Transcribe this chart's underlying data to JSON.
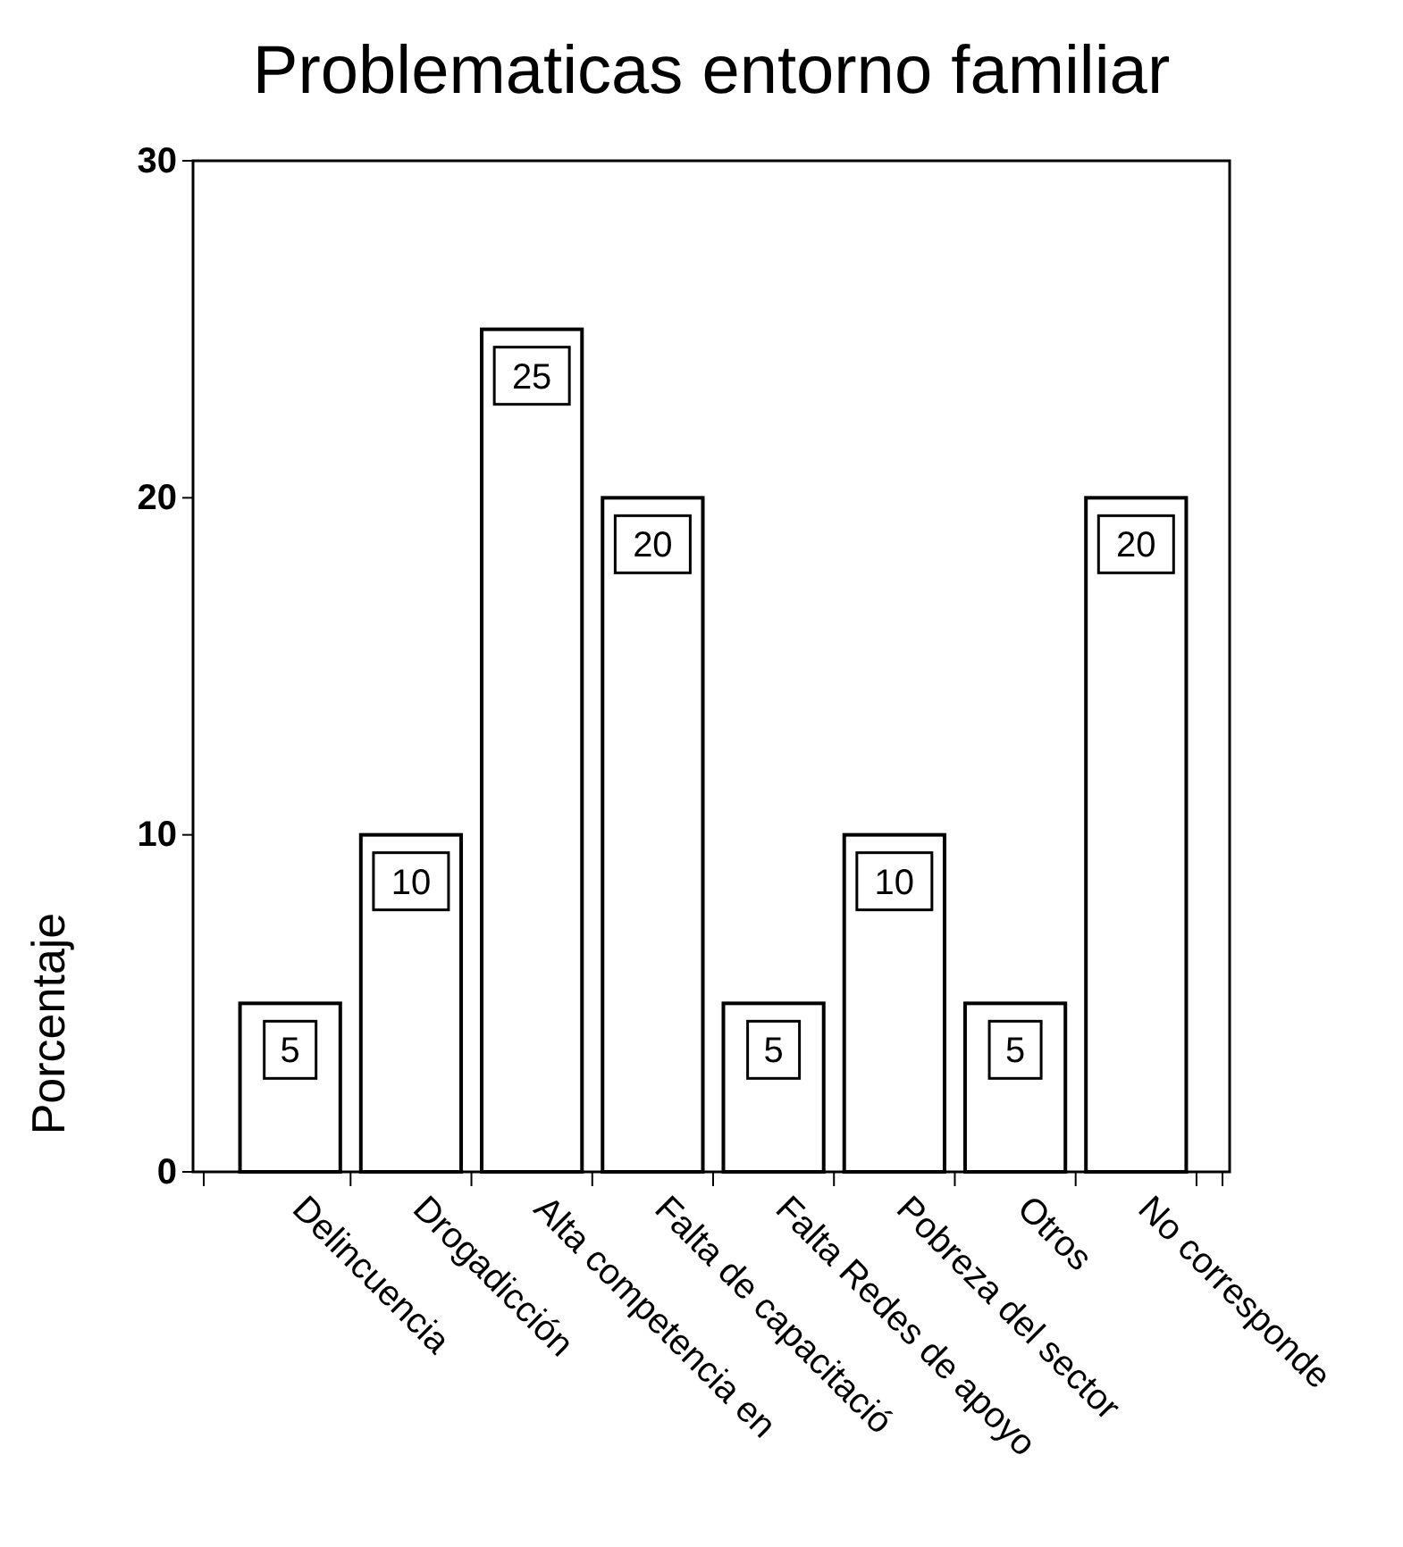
{
  "chart_data": {
    "type": "bar",
    "title": "Problematicas entorno familiar",
    "ylabel": "Porcentaje",
    "categories": [
      "Delincuencia",
      "Drogadicción",
      "Alta competencia en",
      "Falta de capacitació",
      "Falta Redes de apoyo",
      "Pobreza del sector",
      "Otros",
      "No corresponde"
    ],
    "values": [
      5,
      10,
      25,
      20,
      5,
      10,
      5,
      20
    ],
    "color": "#ffffff",
    "ylim": [
      0,
      30
    ],
    "yticks": [
      0,
      10,
      20,
      30
    ],
    "grid": false,
    "data_labels": true
  }
}
